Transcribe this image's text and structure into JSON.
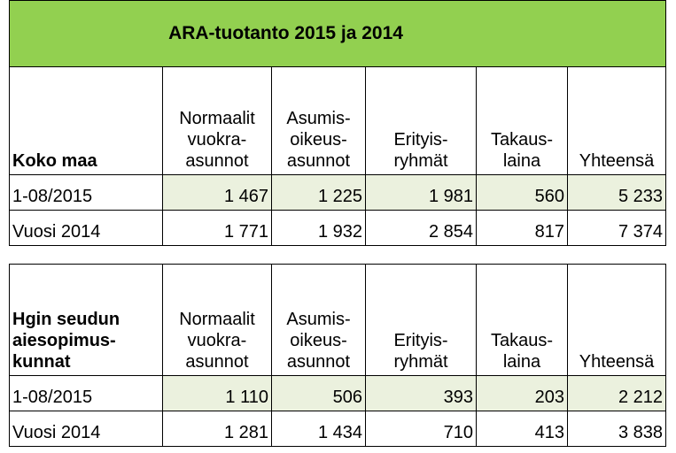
{
  "title": "ARA-tuotanto 2015 ja 2014",
  "columns": [
    "Normaalit\nvuokra-\nasunnot",
    "Asumis-\noikeus-\nasunnot",
    "Erityis-\nryhmät",
    "Takaus-\nlaina",
    "Yhteensä"
  ],
  "tables": [
    {
      "region": "Koko maa",
      "rows": [
        {
          "label": "1-08/2015",
          "values": [
            "1 467",
            "1 225",
            "1 981",
            "560",
            "5 233"
          ]
        },
        {
          "label": "Vuosi 2014",
          "values": [
            "1 771",
            "1 932",
            "2 854",
            "817",
            "7 374"
          ]
        }
      ]
    },
    {
      "region": "Hgin seudun\naiesopimus-\nkunnat",
      "rows": [
        {
          "label": "1-08/2015",
          "values": [
            "1 110",
            "506",
            "393",
            "203",
            "2 212"
          ]
        },
        {
          "label": "Vuosi 2014",
          "values": [
            "1 281",
            "1 434",
            "710",
            "413",
            "3 838"
          ]
        }
      ]
    }
  ],
  "colors": {
    "title_bg": "#92d050",
    "shaded_cell": "#ebf1de"
  }
}
